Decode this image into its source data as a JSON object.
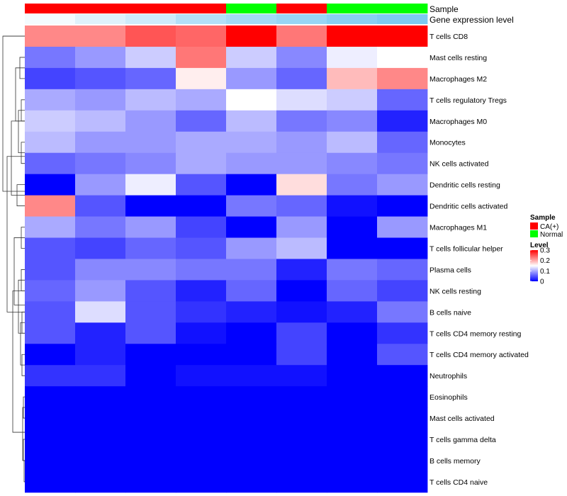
{
  "chart_data": {
    "type": "heatmap",
    "title": "",
    "annotation_tracks": [
      {
        "label": "Sample",
        "values": [
          "CA(+)",
          "CA(+)",
          "CA(+)",
          "CA(+)",
          "Normal",
          "CA(+)",
          "Normal",
          "Normal"
        ]
      },
      {
        "label": "Gene expression level",
        "values": [
          0.02,
          0.06,
          0.09,
          0.14,
          0.17,
          0.19,
          0.22,
          0.24
        ]
      }
    ],
    "rows": [
      {
        "name": "T cells CD8",
        "values": [
          0.22,
          0.22,
          0.25,
          0.24,
          0.3,
          0.23,
          0.3,
          0.3
        ]
      },
      {
        "name": "Mast cells resting",
        "values": [
          0.07,
          0.09,
          0.12,
          0.23,
          0.12,
          0.08,
          0.14,
          0.15
        ]
      },
      {
        "name": "Macrophages M2",
        "values": [
          0.04,
          0.05,
          0.06,
          0.16,
          0.09,
          0.06,
          0.19,
          0.22
        ]
      },
      {
        "name": "T cells regulatory  Tregs",
        "values": [
          0.1,
          0.09,
          0.11,
          0.1,
          0.15,
          0.13,
          0.12,
          0.06
        ]
      },
      {
        "name": "Macrophages M0",
        "values": [
          0.12,
          0.11,
          0.09,
          0.06,
          0.11,
          0.07,
          0.08,
          0.02
        ]
      },
      {
        "name": "Monocytes",
        "values": [
          0.11,
          0.09,
          0.09,
          0.1,
          0.1,
          0.09,
          0.11,
          0.06
        ]
      },
      {
        "name": "NK cells activated",
        "values": [
          0.06,
          0.07,
          0.08,
          0.1,
          0.09,
          0.09,
          0.08,
          0.07
        ]
      },
      {
        "name": "Dendritic cells resting",
        "values": [
          0.0,
          0.09,
          0.14,
          0.05,
          0.0,
          0.17,
          0.07,
          0.09
        ]
      },
      {
        "name": "Dendritic cells activated",
        "values": [
          0.22,
          0.05,
          0.0,
          0.0,
          0.07,
          0.06,
          0.01,
          0.0
        ]
      },
      {
        "name": "Macrophages M1",
        "values": [
          0.1,
          0.07,
          0.09,
          0.04,
          0.0,
          0.09,
          0.0,
          0.09
        ]
      },
      {
        "name": "T cells follicular helper",
        "values": [
          0.05,
          0.04,
          0.06,
          0.05,
          0.09,
          0.11,
          0.0,
          0.0
        ]
      },
      {
        "name": "Plasma cells",
        "values": [
          0.05,
          0.08,
          0.08,
          0.07,
          0.07,
          0.02,
          0.07,
          0.06
        ]
      },
      {
        "name": "NK cells resting",
        "values": [
          0.06,
          0.09,
          0.05,
          0.02,
          0.06,
          0.0,
          0.06,
          0.04
        ]
      },
      {
        "name": "B cells naive",
        "values": [
          0.05,
          0.13,
          0.05,
          0.03,
          0.02,
          0.01,
          0.02,
          0.07
        ]
      },
      {
        "name": "T cells CD4 memory resting",
        "values": [
          0.05,
          0.02,
          0.05,
          0.01,
          0.0,
          0.04,
          0.0,
          0.03
        ]
      },
      {
        "name": "T cells CD4 memory activated",
        "values": [
          0.0,
          0.02,
          0.0,
          0.0,
          0.0,
          0.04,
          0.0,
          0.05
        ]
      },
      {
        "name": "Neutrophils",
        "values": [
          0.03,
          0.03,
          0.0,
          0.01,
          0.01,
          0.01,
          0.0,
          0.0
        ]
      },
      {
        "name": "Eosinophils",
        "values": [
          0.0,
          0.0,
          0.0,
          0.0,
          0.0,
          0.0,
          0.0,
          0.0
        ]
      },
      {
        "name": "Mast cells activated",
        "values": [
          0.0,
          0.0,
          0.0,
          0.0,
          0.0,
          0.0,
          0.0,
          0.0
        ]
      },
      {
        "name": "T cells gamma delta",
        "values": [
          0.0,
          0.0,
          0.0,
          0.0,
          0.0,
          0.0,
          0.0,
          0.0
        ]
      },
      {
        "name": "B cells memory",
        "values": [
          0.0,
          0.0,
          0.0,
          0.0,
          0.0,
          0.0,
          0.0,
          0.0
        ]
      },
      {
        "name": "T cells CD4 naive",
        "values": [
          0.0,
          0.0,
          0.0,
          0.0,
          0.0,
          0.0,
          0.0,
          0.0
        ]
      }
    ],
    "color_scale": {
      "min": 0,
      "max": 0.3,
      "low": "#0000ff",
      "mid": "#ffffff",
      "high": "#ff0000",
      "mid_value": 0.15
    },
    "legend": {
      "placement": "right",
      "sample_title": "Sample",
      "sample_items": [
        {
          "label": "CA(+)",
          "color": "#ff0000"
        },
        {
          "label": "Normal",
          "color": "#00ff00"
        }
      ],
      "level_title": "Level",
      "level_ticks": [
        "0.3",
        "0.2",
        "0.1",
        "0"
      ],
      "level_tick_values": [
        0.3,
        0.2,
        0.1,
        0.0
      ]
    },
    "row_dendrogram": true
  }
}
